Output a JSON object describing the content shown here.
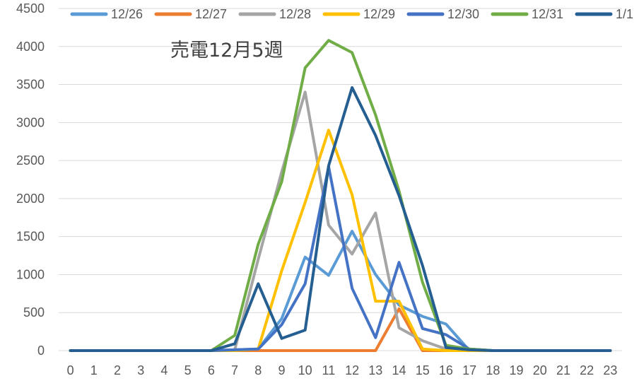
{
  "chart_data": {
    "type": "line",
    "title": "売電12月5週",
    "xlabel": "",
    "ylabel": "",
    "x": [
      "0",
      "1",
      "2",
      "3",
      "4",
      "5",
      "6",
      "7",
      "8",
      "9",
      "10",
      "11",
      "12",
      "13",
      "14",
      "15",
      "16",
      "17",
      "18",
      "19",
      "20",
      "21",
      "22",
      "23"
    ],
    "ylim": [
      0,
      4500
    ],
    "yticks": [
      0,
      500,
      1000,
      1500,
      2000,
      2500,
      3000,
      3500,
      4000,
      4500
    ],
    "grid": true,
    "legend": "top",
    "series": [
      {
        "name": "12/26",
        "color": "#5B9BD5",
        "values": [
          0,
          0,
          0,
          0,
          0,
          0,
          0,
          10,
          20,
          420,
          1230,
          990,
          1570,
          1000,
          600,
          450,
          350,
          0,
          0,
          0,
          0,
          0,
          0,
          0
        ]
      },
      {
        "name": "12/27",
        "color": "#ED7D31",
        "values": [
          0,
          0,
          0,
          0,
          0,
          0,
          0,
          0,
          0,
          0,
          0,
          0,
          0,
          0,
          550,
          0,
          0,
          0,
          0,
          0,
          0,
          0,
          0,
          0
        ]
      },
      {
        "name": "12/28",
        "color": "#A5A5A5",
        "values": [
          0,
          0,
          0,
          0,
          0,
          0,
          0,
          10,
          1200,
          2350,
          3400,
          1650,
          1270,
          1810,
          300,
          130,
          20,
          0,
          0,
          0,
          0,
          0,
          0,
          0
        ]
      },
      {
        "name": "12/29",
        "color": "#FFC000",
        "values": [
          0,
          0,
          0,
          0,
          0,
          0,
          0,
          0,
          20,
          1050,
          1950,
          2900,
          2050,
          650,
          650,
          20,
          0,
          0,
          0,
          0,
          0,
          0,
          0,
          0
        ]
      },
      {
        "name": "12/30",
        "color": "#4472C4",
        "values": [
          0,
          0,
          0,
          0,
          0,
          0,
          0,
          10,
          20,
          340,
          880,
          2420,
          820,
          170,
          1160,
          290,
          210,
          20,
          0,
          0,
          0,
          0,
          0,
          0
        ]
      },
      {
        "name": "12/31",
        "color": "#70AD47",
        "values": [
          0,
          0,
          0,
          0,
          0,
          0,
          0,
          200,
          1400,
          2220,
          3720,
          4080,
          3920,
          3100,
          2100,
          900,
          70,
          20,
          0,
          0,
          0,
          0,
          0,
          0
        ]
      },
      {
        "name": "1/1",
        "color": "#255E91",
        "values": [
          0,
          0,
          0,
          0,
          0,
          0,
          0,
          90,
          880,
          160,
          270,
          2430,
          3460,
          2830,
          2040,
          1120,
          40,
          10,
          0,
          0,
          0,
          0,
          0,
          0
        ]
      }
    ]
  }
}
